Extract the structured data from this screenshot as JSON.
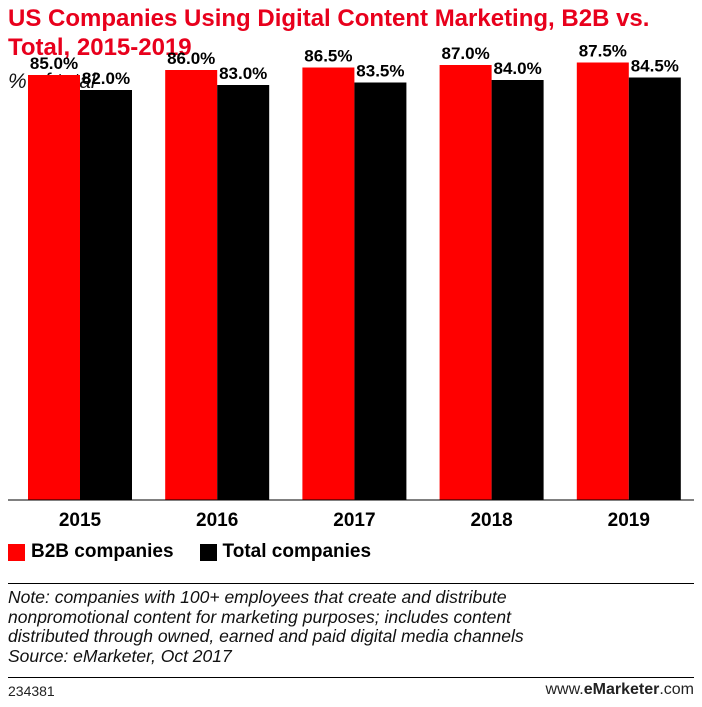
{
  "title": "US Companies Using Digital Content Marketing, B2B vs. Total, 2015-2019",
  "subtitle": "% of total",
  "chart_data": {
    "type": "bar",
    "categories": [
      "2015",
      "2016",
      "2017",
      "2018",
      "2019"
    ],
    "series": [
      {
        "name": "B2B companies",
        "values": [
          85.0,
          86.0,
          86.5,
          87.0,
          87.5
        ],
        "labels": [
          "85.0%",
          "86.0%",
          "86.5%",
          "87.0%",
          "87.5%"
        ],
        "color": "#ff0000"
      },
      {
        "name": "Total companies",
        "values": [
          82.0,
          83.0,
          83.5,
          84.0,
          84.5
        ],
        "labels": [
          "82.0%",
          "83.0%",
          "83.5%",
          "84.0%",
          "84.5%"
        ],
        "color": "#000000"
      }
    ],
    "ylim": [
      0,
      100
    ],
    "grid": false,
    "legend_position": "bottom-left"
  },
  "legend": {
    "items": [
      "B2B companies",
      "Total companies"
    ]
  },
  "note": [
    "Note: companies with 100+ employees that create and distribute",
    "nonpromotional content for marketing purposes; includes content",
    "distributed through owned, earned and paid digital media channels",
    "Source: eMarketer, Oct 2017"
  ],
  "footer": {
    "chart_id": "234381",
    "brand_prefix": "www.",
    "brand_name": "eMarketer",
    "brand_suffix": ".com"
  }
}
